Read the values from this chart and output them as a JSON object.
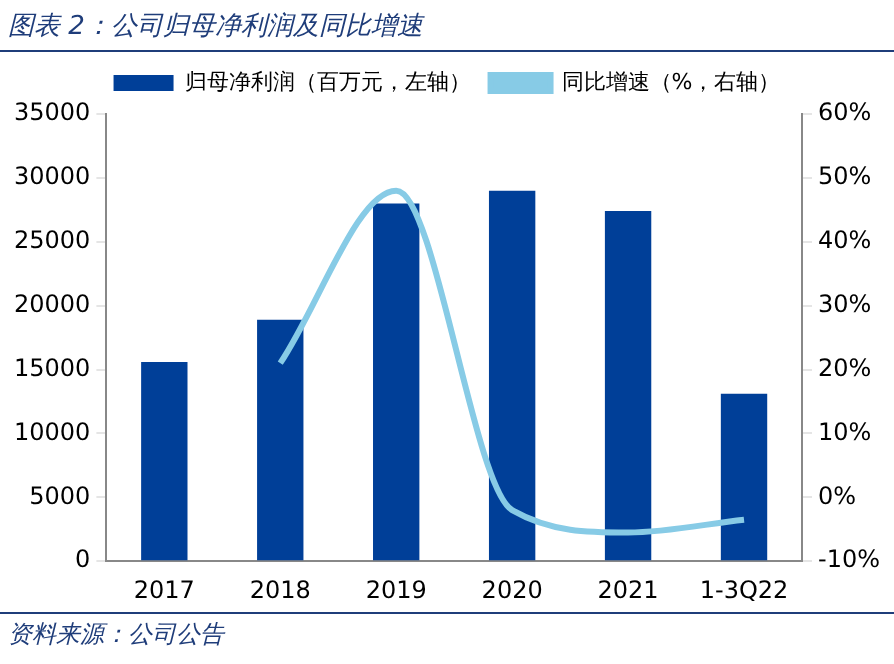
{
  "chart_data": {
    "type": "bar",
    "title": "图表 2：公司归母净利润及同比增速",
    "annotations": [
      "资料来源：公司公告"
    ],
    "categories": [
      "2017",
      "2018",
      "2019",
      "2020",
      "2021",
      "1-3Q22"
    ],
    "series": [
      {
        "name": "归母净利润（百万元，左轴）",
        "color": "#003f98",
        "values": [
          15600,
          18900,
          28000,
          29000,
          27400,
          13100
        ]
      },
      {
        "name": "同比增速（%，右轴）",
        "type": "line",
        "axis": "y2",
        "color": "#87cbe6",
        "values": [
          null,
          21,
          48,
          -2,
          -5.5,
          -3.5
        ]
      }
    ],
    "ylim": [
      0,
      35000
    ],
    "yticks": [
      0,
      5000,
      10000,
      15000,
      20000,
      25000,
      30000,
      35000
    ],
    "y2lim": [
      -10,
      60
    ],
    "y2ticks": [
      {
        "value": -10,
        "label": "-10%"
      },
      {
        "value": 0,
        "label": "0%"
      },
      {
        "value": 10,
        "label": "10%"
      },
      {
        "value": 20,
        "label": "20%"
      },
      {
        "value": 30,
        "label": "30%"
      },
      {
        "value": 40,
        "label": "40%"
      },
      {
        "value": 50,
        "label": "50%"
      },
      {
        "value": 60,
        "label": "60%"
      }
    ],
    "legend": "top",
    "grid": false,
    "marker": "none"
  }
}
